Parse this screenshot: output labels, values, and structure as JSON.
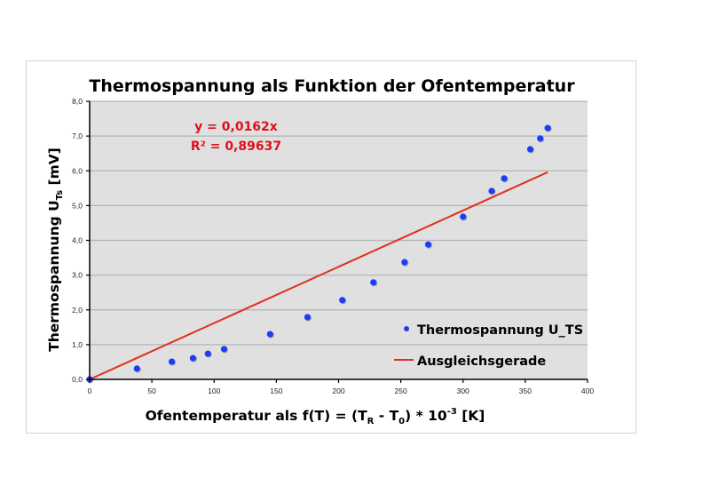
{
  "chart_data": {
    "type": "scatter",
    "title": "Thermospannung als Funktion der Ofentemperatur",
    "xlabel": "Ofentemperatur als f(T) = (T_R - T_0) * 10^-3 [K]",
    "xlabel_parts": {
      "pre": "Ofentemperatur als f(T) = (T",
      "sub1": "R",
      "mid": " - T",
      "sub2": "0",
      "post1": ") * 10",
      "sup": "-3",
      "post2": " [K]"
    },
    "ylabel": "Thermospannung U_Ts [mV]",
    "ylabel_parts": {
      "pre": "Thermospannung U",
      "sub": "Ts",
      "post": "  [mV]"
    },
    "xlim": [
      0,
      400
    ],
    "ylim": [
      0,
      8
    ],
    "xticks": [
      0,
      50,
      100,
      150,
      200,
      250,
      300,
      350,
      400
    ],
    "xtick_labels": [
      "0",
      "50",
      "100",
      "150",
      "200",
      "250",
      "300",
      "350",
      "400"
    ],
    "yticks": [
      0,
      1,
      2,
      3,
      4,
      5,
      6,
      7,
      8
    ],
    "ytick_labels": [
      "0,0",
      "1,0",
      "2,0",
      "3,0",
      "4,0",
      "5,0",
      "6,0",
      "7,0",
      "8,0"
    ],
    "grid": {
      "horizontal": true,
      "vertical": false
    },
    "legend_position": "lower-right-inside",
    "series": [
      {
        "name": "Thermospannung U_TS",
        "kind": "scatter",
        "color": "#1f3cf5",
        "x": [
          0,
          38,
          66,
          83,
          95,
          108,
          145,
          175,
          203,
          228,
          253,
          272,
          300,
          323,
          333,
          354,
          362,
          368
        ],
        "y": [
          0.0,
          0.31,
          0.51,
          0.61,
          0.74,
          0.87,
          1.3,
          1.79,
          2.28,
          2.79,
          3.37,
          3.88,
          4.68,
          5.42,
          5.78,
          6.62,
          6.93,
          7.23
        ]
      },
      {
        "name": "Ausgleichsgerade",
        "kind": "line",
        "color": "#e0301e",
        "slope": 0.0162,
        "x": [
          0,
          368
        ],
        "y": [
          0,
          5.96
        ]
      }
    ],
    "annotations": {
      "equation": "y = 0,0162x",
      "r_squared": "R² = 0,89637",
      "color": "#e0101a"
    }
  },
  "colors": {
    "plot_background": "#e0e0e0",
    "gridline": "#b5b5b5",
    "axis": "#000000",
    "frame_border": "#d4d4d4"
  }
}
